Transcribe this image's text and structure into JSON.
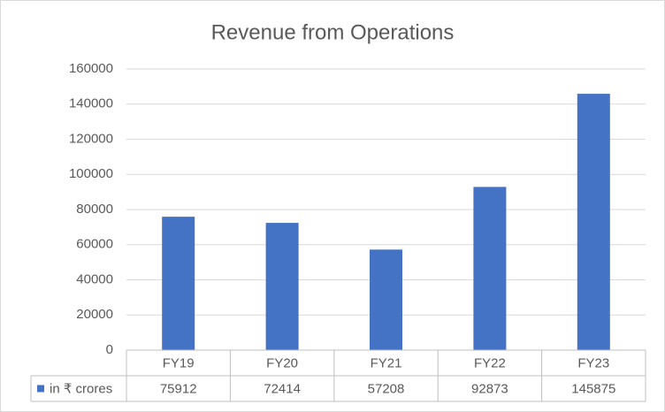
{
  "chart_data": {
    "type": "bar",
    "title": "Revenue from Operations",
    "categories": [
      "FY19",
      "FY20",
      "FY21",
      "FY22",
      "FY23"
    ],
    "series": [
      {
        "name": "in ₹ crores",
        "color": "#4472c4",
        "values": [
          75912,
          72414,
          57208,
          92873,
          145875
        ]
      }
    ],
    "ylim": [
      0,
      160000
    ],
    "yticks": [
      0,
      20000,
      40000,
      60000,
      80000,
      100000,
      120000,
      140000,
      160000
    ],
    "grid": true,
    "data_table": true
  }
}
